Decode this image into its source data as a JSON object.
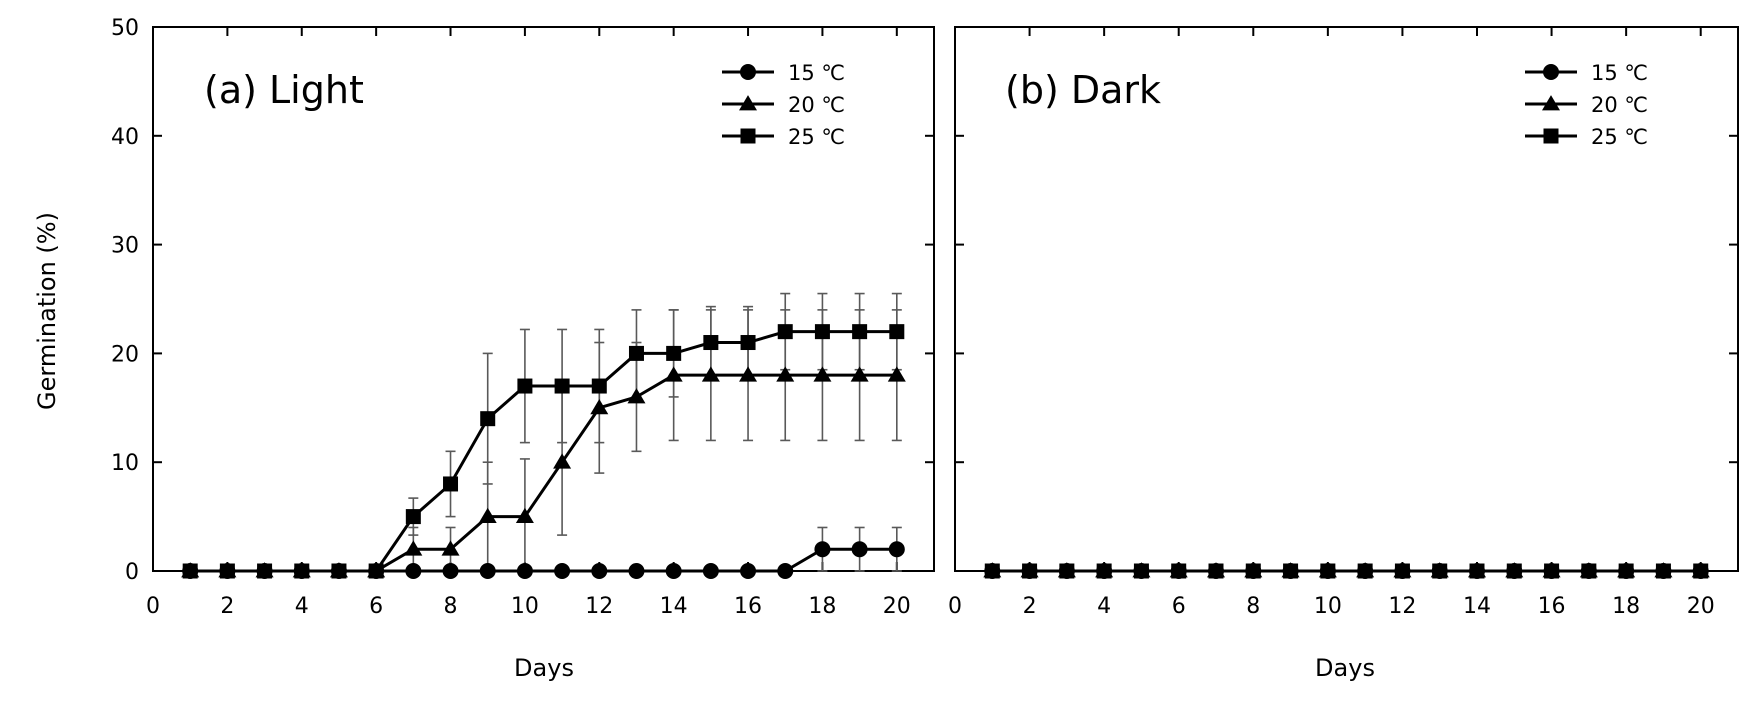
{
  "chart_data": [
    {
      "type": "line",
      "panel": "a",
      "title": "(a) Light",
      "xlabel": "Days",
      "ylabel": "Germination (%)",
      "xlim": [
        0,
        21
      ],
      "ylim": [
        0,
        50
      ],
      "xticks": [
        0,
        2,
        4,
        6,
        8,
        10,
        12,
        14,
        16,
        18,
        20
      ],
      "yticks": [
        0,
        10,
        20,
        30,
        40,
        50
      ],
      "legend": "top-right",
      "series": [
        {
          "name": "15 ℃",
          "marker": "circle",
          "x": [
            1,
            2,
            3,
            4,
            5,
            6,
            7,
            8,
            9,
            10,
            11,
            12,
            13,
            14,
            15,
            16,
            17,
            18,
            19,
            20
          ],
          "values": [
            0,
            0,
            0,
            0,
            0,
            0,
            0,
            0,
            0,
            0,
            0,
            0,
            0,
            0,
            0,
            0,
            0,
            2,
            2,
            2
          ],
          "errors": [
            0,
            0,
            0,
            0,
            0,
            0,
            0,
            0,
            0,
            0,
            0,
            0,
            0,
            0,
            0,
            0,
            0,
            2,
            2,
            2
          ]
        },
        {
          "name": "20 ℃",
          "marker": "triangle",
          "x": [
            1,
            2,
            3,
            4,
            5,
            6,
            7,
            8,
            9,
            10,
            11,
            12,
            13,
            14,
            15,
            16,
            17,
            18,
            19,
            20
          ],
          "values": [
            0,
            0,
            0,
            0,
            0,
            0,
            2,
            2,
            5,
            5,
            10,
            15,
            16,
            18,
            18,
            18,
            18,
            18,
            18,
            18
          ],
          "errors": [
            0,
            0,
            0,
            0,
            0,
            0,
            2,
            2,
            5,
            5.3,
            6.7,
            6,
            5,
            6,
            6,
            6,
            6,
            6,
            6,
            6
          ]
        },
        {
          "name": "25 ℃",
          "marker": "square",
          "x": [
            1,
            2,
            3,
            4,
            5,
            6,
            7,
            8,
            9,
            10,
            11,
            12,
            13,
            14,
            15,
            16,
            17,
            18,
            19,
            20
          ],
          "values": [
            0,
            0,
            0,
            0,
            0,
            0,
            5,
            8,
            14,
            17,
            17,
            17,
            20,
            20,
            21,
            21,
            22,
            22,
            22,
            22
          ],
          "errors": [
            0,
            0,
            0,
            0,
            0,
            0,
            1.7,
            3,
            6,
            5.2,
            5.2,
            5.2,
            4,
            4,
            3.3,
            3.3,
            3.5,
            3.5,
            3.5,
            3.5
          ]
        }
      ]
    },
    {
      "type": "line",
      "panel": "b",
      "title": "(b) Dark",
      "xlabel": "Days",
      "ylabel": "",
      "xlim": [
        0,
        21
      ],
      "ylim": [
        0,
        50
      ],
      "xticks": [
        0,
        2,
        4,
        6,
        8,
        10,
        12,
        14,
        16,
        18,
        20
      ],
      "yticks": [
        0,
        10,
        20,
        30,
        40,
        50
      ],
      "legend": "top-right",
      "series": [
        {
          "name": "15 ℃",
          "marker": "circle",
          "x": [
            1,
            2,
            3,
            4,
            5,
            6,
            7,
            8,
            9,
            10,
            11,
            12,
            13,
            14,
            15,
            16,
            17,
            18,
            19,
            20
          ],
          "values": [
            0,
            0,
            0,
            0,
            0,
            0,
            0,
            0,
            0,
            0,
            0,
            0,
            0,
            0,
            0,
            0,
            0,
            0,
            0,
            0
          ],
          "errors": [
            0,
            0,
            0,
            0,
            0,
            0,
            0,
            0,
            0,
            0,
            0,
            0,
            0,
            0,
            0,
            0,
            0,
            0,
            0,
            0
          ]
        },
        {
          "name": "20 ℃",
          "marker": "triangle",
          "x": [
            1,
            2,
            3,
            4,
            5,
            6,
            7,
            8,
            9,
            10,
            11,
            12,
            13,
            14,
            15,
            16,
            17,
            18,
            19,
            20
          ],
          "values": [
            0,
            0,
            0,
            0,
            0,
            0,
            0,
            0,
            0,
            0,
            0,
            0,
            0,
            0,
            0,
            0,
            0,
            0,
            0,
            0
          ],
          "errors": [
            0,
            0,
            0,
            0,
            0,
            0,
            0,
            0,
            0,
            0,
            0,
            0,
            0,
            0,
            0,
            0,
            0,
            0,
            0,
            0
          ]
        },
        {
          "name": "25 ℃",
          "marker": "square",
          "x": [
            1,
            2,
            3,
            4,
            5,
            6,
            7,
            8,
            9,
            10,
            11,
            12,
            13,
            14,
            15,
            16,
            17,
            18,
            19,
            20
          ],
          "values": [
            0,
            0,
            0,
            0,
            0,
            0,
            0,
            0,
            0,
            0,
            0,
            0,
            0,
            0,
            0,
            0,
            0,
            0,
            0,
            0
          ],
          "errors": [
            0,
            0,
            0,
            0,
            0,
            0,
            0,
            0,
            0,
            0,
            0,
            0,
            0,
            0,
            0,
            0,
            0,
            0,
            0,
            0
          ]
        }
      ]
    }
  ],
  "colors": {
    "line": "#000000",
    "error_bar": "#595959",
    "axis": "#000000"
  }
}
